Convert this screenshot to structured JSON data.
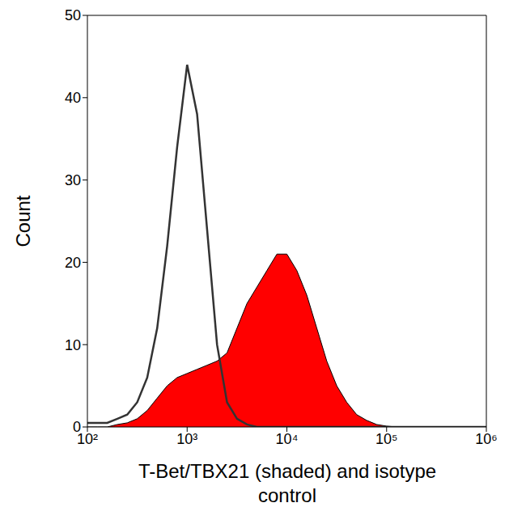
{
  "chart_data": {
    "type": "line",
    "x_label": "T-Bet/TBX21 (shaded) and isotype control",
    "y_label": "Count",
    "log": "x",
    "x": [
      100,
      126,
      158,
      200,
      251,
      316,
      398,
      501,
      631,
      794,
      1000,
      1259,
      1585,
      1995,
      2512,
      3162,
      3981,
      5012,
      6310,
      7943,
      10000,
      12589,
      15849,
      19953,
      25119,
      31623,
      39811,
      50119,
      63096,
      79433,
      100000,
      125893,
      158489,
      199526,
      251189,
      316228,
      398107,
      501187,
      630957,
      794328,
      1000000
    ],
    "series": [
      {
        "type": "area",
        "color": "#ff0000",
        "values": [
          0,
          0,
          0,
          0.3,
          0.5,
          1,
          2,
          3.5,
          5,
          6,
          6.5,
          7,
          7.5,
          8,
          9,
          12,
          15,
          17,
          19,
          21,
          21,
          19,
          16,
          12,
          8,
          5,
          3,
          1.5,
          0.8,
          0.3,
          0.1,
          0,
          0,
          0,
          0,
          0,
          0,
          0,
          0,
          0,
          0
        ]
      },
      {
        "type": "line",
        "color": "#333333",
        "values": [
          0.5,
          0.5,
          0.5,
          1,
          1.5,
          3,
          6,
          12,
          22,
          34,
          44,
          38,
          24,
          10,
          3,
          1,
          0.3,
          0,
          0,
          0,
          0,
          0,
          0,
          0,
          0,
          0,
          0,
          0,
          0,
          0,
          0,
          0,
          0,
          0,
          0,
          0,
          0,
          0,
          0,
          0,
          0
        ]
      }
    ],
    "xlim": [
      100,
      1000000
    ],
    "xticks": [
      {
        "value": 100,
        "label": "10²"
      },
      {
        "value": 1000,
        "label": "10³"
      },
      {
        "value": 10000,
        "label": "10⁴"
      },
      {
        "value": 100000,
        "label": "10⁵"
      },
      {
        "value": 1000000,
        "label": "10⁶"
      }
    ],
    "ylim": [
      0,
      50
    ],
    "yticks": [
      0,
      10,
      20,
      30,
      40,
      50
    ]
  }
}
